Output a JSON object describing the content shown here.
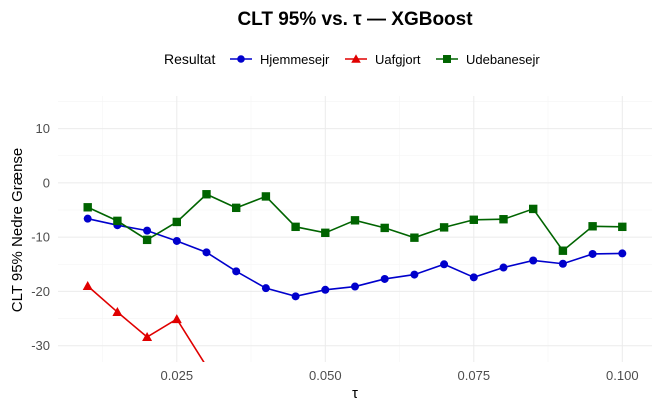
{
  "chart_data": {
    "type": "line",
    "title": "CLT 95% vs. τ — XGBoost",
    "xlabel": "τ",
    "ylabel": "CLT 95% Nedre Grænse",
    "xlim": [
      0.005,
      0.105
    ],
    "ylim": [
      -33,
      16
    ],
    "xticks": [
      0.025,
      0.05,
      0.075,
      0.1
    ],
    "xtick_labels": [
      "0.025",
      "0.050",
      "0.075",
      "0.100"
    ],
    "yticks": [
      -30,
      -20,
      -10,
      0,
      10
    ],
    "ytick_labels": [
      "-30",
      "-20",
      "-10",
      "0",
      "10"
    ],
    "grid": true,
    "legend": {
      "title": "Resultat",
      "position": "top"
    },
    "series": [
      {
        "name": "Hjemmesejr",
        "color": "#0000cc",
        "marker": "circle",
        "x": [
          0.01,
          0.015,
          0.02,
          0.025,
          0.03,
          0.035,
          0.04,
          0.045,
          0.05,
          0.055,
          0.06,
          0.065,
          0.07,
          0.075,
          0.08,
          0.085,
          0.09,
          0.095,
          0.1
        ],
        "y": [
          -6.6,
          -7.8,
          -8.8,
          -10.7,
          -12.8,
          -16.3,
          -19.4,
          -20.9,
          -19.7,
          -19.1,
          -17.7,
          -16.9,
          -15.0,
          -17.4,
          -15.6,
          -14.3,
          -14.9,
          -13.1,
          -13.0
        ]
      },
      {
        "name": "Uafgjort",
        "color": "#e00000",
        "marker": "triangle",
        "x": [
          0.01,
          0.015,
          0.02,
          0.025,
          0.03
        ],
        "y": [
          -19.0,
          -23.8,
          -28.4,
          -25.1,
          -33.8
        ]
      },
      {
        "name": "Udebanesejr",
        "color": "#006400",
        "marker": "square",
        "x": [
          0.01,
          0.015,
          0.02,
          0.025,
          0.03,
          0.035,
          0.04,
          0.045,
          0.05,
          0.055,
          0.06,
          0.065,
          0.07,
          0.075,
          0.08,
          0.085,
          0.09,
          0.095,
          0.1
        ],
        "y": [
          -4.5,
          -7.0,
          -10.5,
          -7.2,
          -2.1,
          -4.6,
          -2.5,
          -8.1,
          -9.2,
          -6.9,
          -8.3,
          -10.1,
          -8.2,
          -6.8,
          -6.7,
          -4.8,
          -12.5,
          -8.0,
          -8.1
        ]
      }
    ]
  }
}
